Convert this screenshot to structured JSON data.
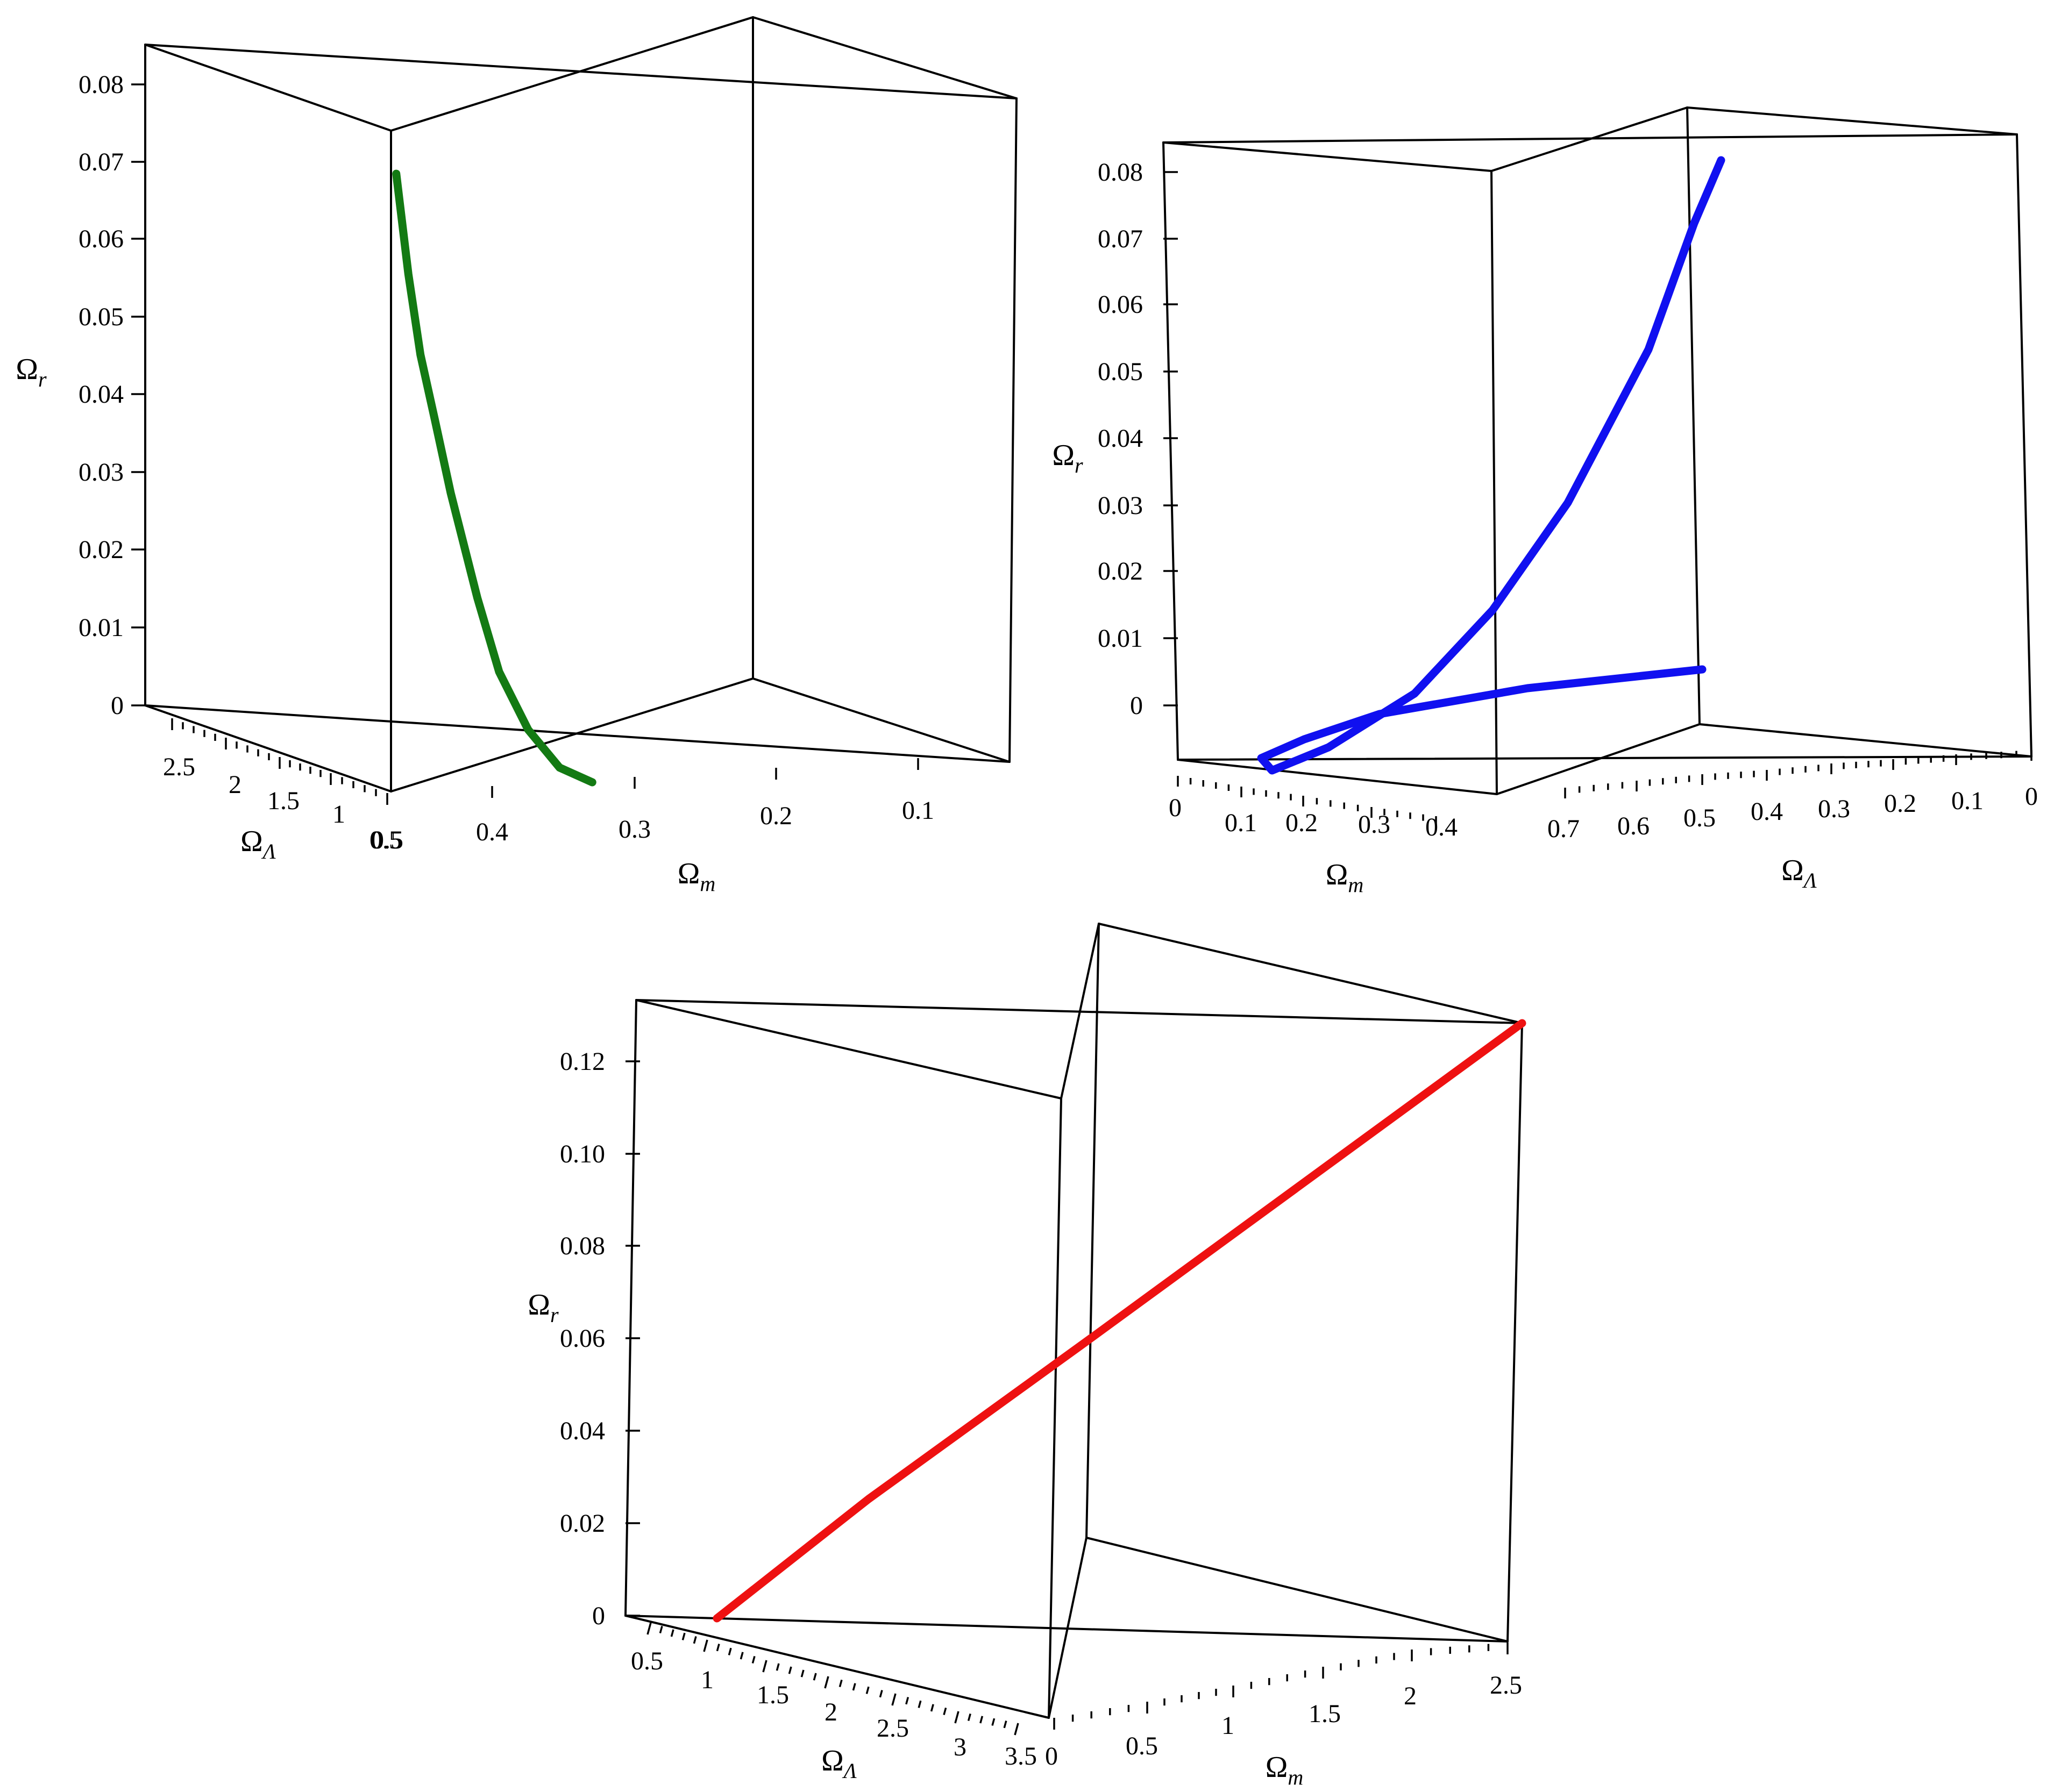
{
  "chart_data": [
    {
      "type": "line3d",
      "color": "#137a13",
      "box_edges": "black",
      "ticks": {
        "z": [
          "0",
          "0.01",
          "0.02",
          "0.03",
          "0.04",
          "0.05",
          "0.06",
          "0.07",
          "0.08"
        ],
        "lambda": [
          "0.5",
          "1",
          "1.5",
          "2",
          "2.5"
        ],
        "m": [
          "0.1",
          "0.2",
          "0.3",
          "0.4",
          "0.5"
        ]
      },
      "labels": {
        "z": {
          "main": "Ω",
          "sub": "r"
        },
        "lambda": {
          "main": "Ω",
          "sub": "Λ"
        },
        "m": {
          "main": "Ω",
          "sub": "m"
        }
      },
      "series": [
        {
          "points": [
            {
              "m": 0.497,
              "lambda": 2.88,
              "r": 0.0745
            },
            {
              "m": 0.487,
              "lambda": 2.66,
              "r": 0.062
            },
            {
              "m": 0.477,
              "lambda": 2.44,
              "r": 0.052
            },
            {
              "m": 0.465,
              "lambda": 2.2,
              "r": 0.044
            },
            {
              "m": 0.452,
              "lambda": 2.0,
              "r": 0.035
            },
            {
              "m": 0.43,
              "lambda": 1.7,
              "r": 0.022
            },
            {
              "m": 0.412,
              "lambda": 1.4,
              "r": 0.013
            },
            {
              "m": 0.388,
              "lambda": 1.12,
              "r": 0.006
            },
            {
              "m": 0.362,
              "lambda": 0.86,
              "r": 0.0015
            },
            {
              "m": 0.335,
              "lambda": 0.6,
              "r": 0.0
            }
          ]
        }
      ]
    },
    {
      "type": "line3d",
      "color": "#1010f0",
      "box_edges": "black",
      "ticks": {
        "z": [
          "0",
          "0.01",
          "0.02",
          "0.03",
          "0.04",
          "0.05",
          "0.06",
          "0.07",
          "0.08"
        ],
        "m": [
          "0",
          "0.1",
          "0.2",
          "0.3",
          "0.4"
        ],
        "lambda": [
          "0",
          "0.1",
          "0.2",
          "0.3",
          "0.4",
          "0.5",
          "0.6",
          "0.7"
        ]
      },
      "labels": {
        "z": {
          "main": "Ω",
          "sub": "r"
        },
        "m": {
          "main": "Ω",
          "sub": "m"
        },
        "lambda": {
          "main": "Ω",
          "sub": "Λ"
        }
      },
      "series": [
        {
          "points": [
            {
              "m": 0.47,
              "lambda": 0.02,
              "r": 0.082
            },
            {
              "m": 0.45,
              "lambda": 0.06,
              "r": 0.055
            },
            {
              "m": 0.42,
              "lambda": 0.12,
              "r": 0.032
            },
            {
              "m": 0.38,
              "lambda": 0.2,
              "r": 0.016
            },
            {
              "m": 0.33,
              "lambda": 0.3,
              "r": 0.006
            },
            {
              "m": 0.27,
              "lambda": 0.42,
              "r": 0.001
            },
            {
              "m": 0.2,
              "lambda": 0.56,
              "r": 0.0
            },
            {
              "m": 0.14,
              "lambda": 0.66,
              "r": 0.0005
            },
            {
              "m": 0.12,
              "lambda": 0.7,
              "r": 0.003
            },
            {
              "m": 0.18,
              "lambda": 0.68,
              "r": 0.0065
            },
            {
              "m": 0.3,
              "lambda": 0.58,
              "r": 0.0085
            },
            {
              "m": 0.44,
              "lambda": 0.38,
              "r": 0.0095
            },
            {
              "m": 0.5,
              "lambda": 0.05,
              "r": 0.01
            }
          ]
        }
      ]
    },
    {
      "type": "line3d",
      "color": "#ee1111",
      "box_edges": "black",
      "ticks": {
        "z": [
          "0",
          "0.02",
          "0.04",
          "0.06",
          "0.08",
          "0.10",
          "0.12"
        ],
        "lambda": [
          "0.5",
          "1",
          "1.5",
          "2",
          "2.5",
          "3",
          "3.5"
        ],
        "m": [
          "0",
          "0.5",
          "1",
          "1.5",
          "2",
          "2.5"
        ]
      },
      "labels": {
        "z": {
          "main": "Ω",
          "sub": "r"
        },
        "lambda": {
          "main": "Ω",
          "sub": "Λ"
        },
        "m": {
          "main": "Ω",
          "sub": "m"
        }
      },
      "series": [
        {
          "points": [
            {
              "m": 0.0,
              "lambda": 1.2,
              "r": 0.0
            },
            {
              "m": 0.9,
              "lambda": 2.1,
              "r": 0.032
            },
            {
              "m": 1.6,
              "lambda": 2.8,
              "r": 0.065
            },
            {
              "m": 2.6,
              "lambda": 3.6,
              "r": 0.128
            }
          ]
        }
      ]
    }
  ]
}
